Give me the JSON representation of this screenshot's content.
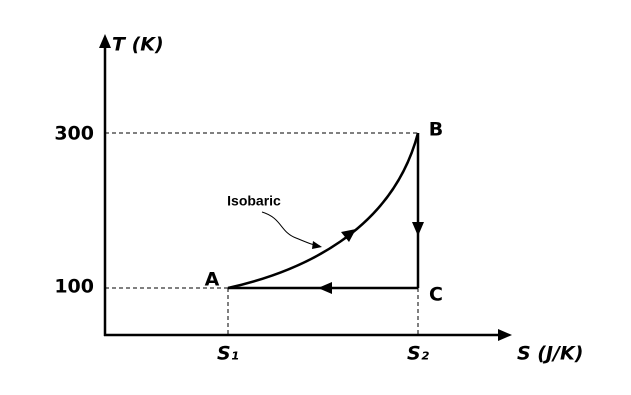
{
  "axes": {
    "y_title": "T (K)",
    "x_title": "S (J/K)"
  },
  "y_ticks": [
    "300",
    "100"
  ],
  "x_ticks": [
    "S₁",
    "S₂"
  ],
  "points": {
    "A": "A",
    "B": "B",
    "C": "C"
  },
  "annotation": "Isobaric"
}
